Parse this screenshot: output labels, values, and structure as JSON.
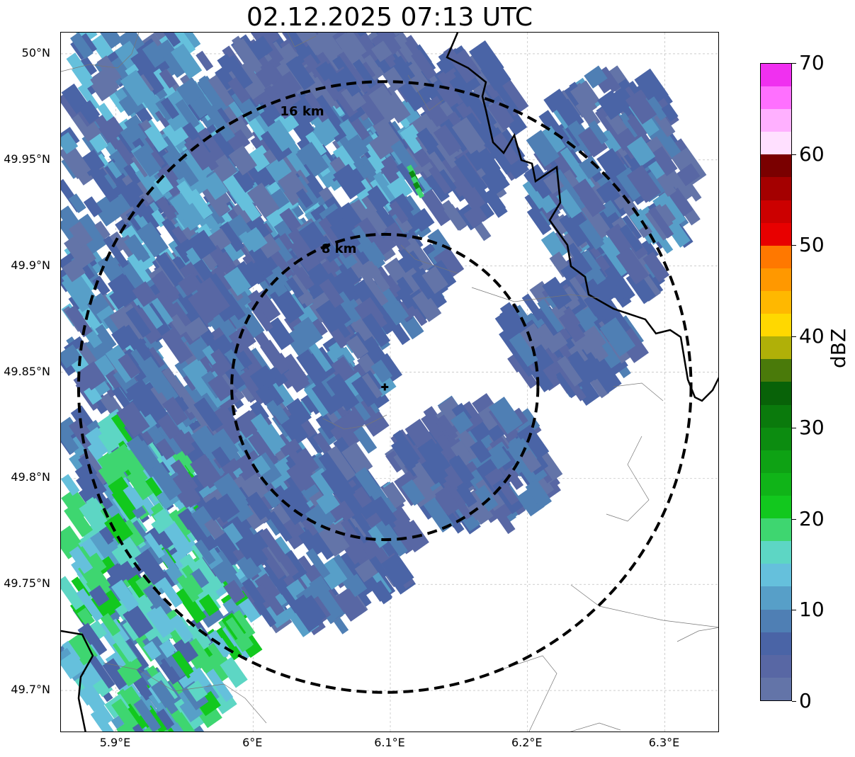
{
  "title": "02.12.2025 07:13 UTC",
  "map": {
    "lon_range": [
      5.86,
      6.34
    ],
    "lat_range": [
      49.68,
      50.01
    ],
    "x_ticks": [
      "5.9°E",
      "6°E",
      "6.1°E",
      "6.2°E",
      "6.3°E"
    ],
    "y_ticks": [
      "50°N",
      "49.95°N",
      "49.9°N",
      "49.85°N",
      "49.8°N",
      "49.75°N",
      "49.7°N"
    ],
    "radar_site": {
      "lon": 6.096,
      "lat": 49.843
    },
    "rings": [
      {
        "label": "8 km",
        "radius_km": 8
      },
      {
        "label": "16 km",
        "radius_km": 16
      }
    ],
    "gridlines": true,
    "border_color": "#000000"
  },
  "colorbar": {
    "label": "dBZ",
    "ticks": [
      "0",
      "10",
      "20",
      "30",
      "40",
      "50",
      "60",
      "70"
    ],
    "range": [
      0,
      70
    ],
    "step": 2.5,
    "colors": [
      "#6374a8",
      "#5867a4",
      "#4a64a6",
      "#4f7fb4",
      "#579fc8",
      "#65c0dc",
      "#5dd6c4",
      "#3ed670",
      "#12c81e",
      "#10b418",
      "#0ea214",
      "#0c8c10",
      "#0a7a0c",
      "#086208",
      "#4a7a0a",
      "#b0b008",
      "#ffd800",
      "#ffb800",
      "#ff9800",
      "#ff7800",
      "#e80000",
      "#cc0000",
      "#a40000",
      "#7a0000",
      "#ffe0ff",
      "#ffb0ff",
      "#ff70ff",
      "#f030f0"
    ]
  }
}
